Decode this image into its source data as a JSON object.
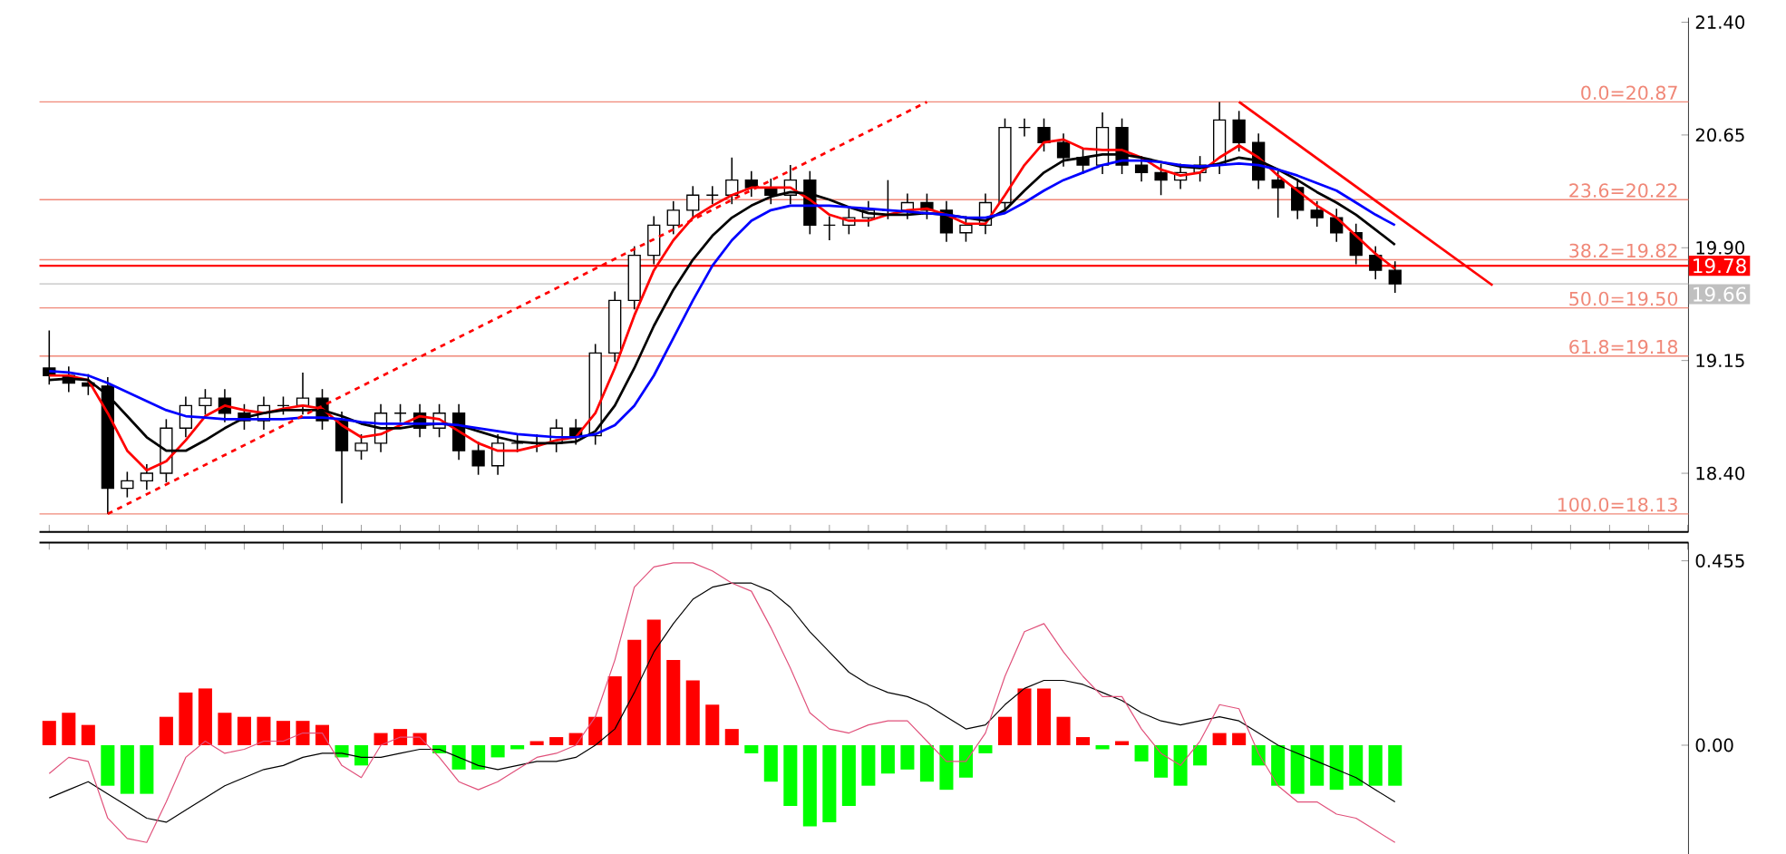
{
  "chart_data": [
    {
      "type": "candlestick",
      "tick_labels": "y",
      "categories": [
        null,
        null,
        null,
        null,
        null,
        null,
        null,
        null,
        null,
        null,
        null,
        null,
        null,
        null,
        null,
        null,
        null,
        null,
        null,
        null,
        null,
        null,
        null,
        null,
        null,
        null,
        null,
        null,
        null,
        null,
        null,
        null,
        null,
        null,
        null,
        null,
        null,
        null,
        null,
        null,
        null,
        null,
        null,
        null,
        null,
        null,
        null,
        null,
        null,
        null,
        null,
        null,
        null,
        null,
        null,
        null,
        null,
        null,
        null,
        null,
        null,
        null,
        null,
        null,
        null,
        null,
        null,
        null,
        null,
        null,
        null,
        null,
        null,
        null,
        null
      ],
      "ohlc": [
        [
          19.1,
          19.35,
          18.99,
          19.05
        ],
        [
          19.05,
          19.11,
          18.94,
          19.0
        ],
        [
          19.0,
          19.06,
          18.92,
          18.98
        ],
        [
          18.98,
          19.04,
          18.13,
          18.3
        ],
        [
          18.3,
          18.41,
          18.24,
          18.35
        ],
        [
          18.35,
          18.46,
          18.29,
          18.4
        ],
        [
          18.4,
          18.76,
          18.34,
          18.7
        ],
        [
          18.7,
          18.91,
          18.64,
          18.85
        ],
        [
          18.85,
          18.96,
          18.79,
          18.9
        ],
        [
          18.9,
          18.96,
          18.74,
          18.8
        ],
        [
          18.8,
          18.86,
          18.69,
          18.75
        ],
        [
          18.75,
          18.91,
          18.69,
          18.85
        ],
        [
          18.85,
          18.91,
          18.79,
          18.85
        ],
        [
          18.85,
          19.07,
          18.79,
          18.9
        ],
        [
          18.9,
          18.96,
          18.69,
          18.75
        ],
        [
          18.75,
          18.81,
          18.2,
          18.55
        ],
        [
          18.55,
          18.66,
          18.49,
          18.6
        ],
        [
          18.6,
          18.86,
          18.54,
          18.8
        ],
        [
          18.8,
          18.86,
          18.74,
          18.8
        ],
        [
          18.8,
          18.86,
          18.64,
          18.7
        ],
        [
          18.7,
          18.86,
          18.64,
          18.8
        ],
        [
          18.8,
          18.86,
          18.49,
          18.55
        ],
        [
          18.55,
          18.61,
          18.39,
          18.45
        ],
        [
          18.45,
          18.66,
          18.39,
          18.6
        ],
        [
          18.6,
          18.66,
          18.54,
          18.6
        ],
        [
          18.6,
          18.66,
          18.54,
          18.6
        ],
        [
          18.6,
          18.76,
          18.54,
          18.7
        ],
        [
          18.7,
          18.76,
          18.59,
          18.65
        ],
        [
          18.65,
          19.26,
          18.59,
          19.2
        ],
        [
          19.2,
          19.61,
          19.14,
          19.55
        ],
        [
          19.55,
          19.91,
          19.49,
          19.85
        ],
        [
          19.85,
          20.11,
          19.79,
          20.05
        ],
        [
          20.05,
          20.21,
          19.99,
          20.15
        ],
        [
          20.15,
          20.31,
          20.09,
          20.25
        ],
        [
          20.25,
          20.31,
          20.19,
          20.25
        ],
        [
          20.25,
          20.5,
          20.19,
          20.35
        ],
        [
          20.35,
          20.41,
          20.24,
          20.3
        ],
        [
          20.3,
          20.36,
          20.19,
          20.25
        ],
        [
          20.25,
          20.45,
          20.19,
          20.35
        ],
        [
          20.35,
          20.41,
          19.99,
          20.05
        ],
        [
          20.05,
          20.11,
          19.95,
          20.05
        ],
        [
          20.05,
          20.16,
          19.99,
          20.1
        ],
        [
          20.1,
          20.21,
          20.04,
          20.15
        ],
        [
          20.15,
          20.35,
          20.09,
          20.15
        ],
        [
          20.15,
          20.26,
          20.09,
          20.2
        ],
        [
          20.2,
          20.26,
          20.09,
          20.15
        ],
        [
          20.15,
          20.21,
          19.94,
          20.0
        ],
        [
          20.0,
          20.11,
          19.94,
          20.05
        ],
        [
          20.05,
          20.26,
          19.99,
          20.2
        ],
        [
          20.2,
          20.76,
          20.14,
          20.7
        ],
        [
          20.7,
          20.76,
          20.64,
          20.7
        ],
        [
          20.7,
          20.76,
          20.54,
          20.6
        ],
        [
          20.6,
          20.66,
          20.44,
          20.5
        ],
        [
          20.5,
          20.56,
          20.39,
          20.45
        ],
        [
          20.45,
          20.8,
          20.39,
          20.7
        ],
        [
          20.7,
          20.76,
          20.39,
          20.45
        ],
        [
          20.45,
          20.51,
          20.34,
          20.4
        ],
        [
          20.4,
          20.46,
          20.25,
          20.35
        ],
        [
          20.35,
          20.46,
          20.29,
          20.4
        ],
        [
          20.4,
          20.51,
          20.34,
          20.45
        ],
        [
          20.45,
          20.87,
          20.39,
          20.75
        ],
        [
          20.75,
          20.81,
          20.54,
          20.6
        ],
        [
          20.6,
          20.66,
          20.29,
          20.35
        ],
        [
          20.35,
          20.41,
          20.1,
          20.3
        ],
        [
          20.3,
          20.36,
          20.09,
          20.15
        ],
        [
          20.15,
          20.21,
          20.04,
          20.1
        ],
        [
          20.1,
          20.16,
          19.94,
          20.0
        ],
        [
          20.0,
          20.06,
          19.79,
          19.85
        ],
        [
          19.85,
          19.91,
          19.69,
          19.75
        ],
        [
          19.75,
          19.81,
          19.6,
          19.66
        ],
        null,
        null,
        null,
        null,
        null
      ],
      "series": [
        {
          "type": "line",
          "color": "#ff0000",
          "values": [
            19.05,
            19.05,
            19.02,
            18.8,
            18.55,
            18.42,
            18.48,
            18.62,
            18.78,
            18.85,
            18.82,
            18.8,
            18.83,
            18.85,
            18.83,
            18.72,
            18.64,
            18.66,
            18.72,
            18.78,
            18.76,
            18.68,
            18.6,
            18.55,
            18.55,
            18.58,
            18.62,
            18.64,
            18.8,
            19.1,
            19.45,
            19.75,
            19.95,
            20.1,
            20.18,
            20.25,
            20.3,
            20.3,
            20.3,
            20.22,
            20.12,
            20.08,
            20.08,
            20.12,
            20.15,
            20.16,
            20.12,
            20.06,
            20.06,
            20.25,
            20.45,
            20.6,
            20.62,
            20.56,
            20.55,
            20.55,
            20.5,
            20.42,
            20.38,
            20.4,
            20.5,
            20.58,
            20.5,
            20.38,
            20.28,
            20.18,
            20.1,
            19.98,
            19.86,
            19.76,
            null,
            null,
            null,
            null,
            null
          ]
        },
        {
          "type": "line",
          "color": "#000000",
          "values": [
            19.02,
            19.03,
            19.02,
            18.92,
            18.78,
            18.64,
            18.55,
            18.55,
            18.62,
            18.7,
            18.77,
            18.8,
            18.82,
            18.82,
            18.82,
            18.78,
            18.73,
            18.7,
            18.7,
            18.72,
            18.73,
            18.72,
            18.68,
            18.64,
            18.61,
            18.6,
            18.6,
            18.61,
            18.68,
            18.85,
            19.1,
            19.38,
            19.62,
            19.82,
            19.98,
            20.1,
            20.18,
            20.24,
            20.27,
            20.26,
            20.22,
            20.17,
            20.13,
            20.12,
            20.12,
            20.13,
            20.12,
            20.1,
            20.08,
            20.15,
            20.28,
            20.4,
            20.48,
            20.5,
            20.52,
            20.52,
            20.5,
            20.47,
            20.44,
            20.43,
            20.46,
            20.5,
            20.48,
            20.42,
            20.35,
            20.27,
            20.2,
            20.12,
            20.02,
            19.92,
            null,
            null,
            null,
            null,
            null
          ]
        },
        {
          "type": "line",
          "color": "#0000ff",
          "values": [
            19.08,
            19.07,
            19.05,
            19.0,
            18.94,
            18.88,
            18.82,
            18.78,
            18.77,
            18.76,
            18.76,
            18.76,
            18.76,
            18.77,
            18.77,
            18.76,
            18.74,
            18.73,
            18.73,
            18.73,
            18.73,
            18.72,
            18.7,
            18.68,
            18.66,
            18.65,
            18.64,
            18.64,
            18.66,
            18.72,
            18.85,
            19.05,
            19.3,
            19.55,
            19.78,
            19.95,
            20.08,
            20.15,
            20.18,
            20.18,
            20.18,
            20.17,
            20.16,
            20.15,
            20.14,
            20.13,
            20.12,
            20.1,
            20.1,
            20.13,
            20.2,
            20.28,
            20.35,
            20.4,
            20.45,
            20.48,
            20.48,
            20.47,
            20.45,
            20.44,
            20.45,
            20.46,
            20.45,
            20.42,
            20.38,
            20.33,
            20.28,
            20.2,
            20.12,
            20.05,
            null,
            null,
            null,
            null,
            null
          ]
        },
        {
          "type": "line",
          "color": "#ff0000",
          "line_style": "dashed",
          "values": [
            null,
            null,
            null,
            18.13,
            null,
            null,
            null,
            null,
            null,
            null,
            null,
            null,
            null,
            null,
            null,
            null,
            null,
            null,
            null,
            null,
            null,
            null,
            null,
            null,
            null,
            null,
            null,
            null,
            null,
            null,
            null,
            null,
            null,
            null,
            null,
            null,
            null,
            null,
            null,
            null,
            null,
            null,
            null,
            null,
            null,
            20.87,
            null,
            null,
            null,
            null,
            null,
            null,
            null,
            null,
            null,
            null,
            null,
            null,
            null,
            null,
            null,
            null,
            null,
            null,
            null,
            null,
            null,
            null,
            null,
            null,
            null,
            null,
            null,
            null,
            null
          ]
        },
        {
          "type": "line",
          "color": "#ff0000",
          "values": [
            null,
            null,
            null,
            null,
            null,
            null,
            null,
            null,
            null,
            null,
            null,
            null,
            null,
            null,
            null,
            null,
            null,
            null,
            null,
            null,
            null,
            null,
            null,
            null,
            null,
            null,
            null,
            null,
            null,
            null,
            null,
            null,
            null,
            null,
            null,
            null,
            null,
            null,
            null,
            null,
            null,
            null,
            null,
            null,
            null,
            null,
            null,
            null,
            null,
            null,
            null,
            null,
            null,
            null,
            null,
            null,
            null,
            null,
            null,
            null,
            null,
            20.87,
            null,
            null,
            null,
            null,
            null,
            null,
            null,
            null,
            null,
            null,
            null,
            null,
            19.65
          ]
        }
      ],
      "ylim": [
        18.01,
        21.43
      ],
      "yticks": [
        {
          "value": 18.4,
          "label": "18.40"
        },
        {
          "value": 19.15,
          "label": "19.15"
        },
        {
          "value": 19.9,
          "label": "19.90"
        },
        {
          "value": 20.65,
          "label": "20.65"
        },
        {
          "value": 21.4,
          "label": "21.40"
        }
      ],
      "ref_lines": [
        {
          "axis": "y",
          "value": 20.87,
          "label": "0.0=20.87",
          "color": "#f08878"
        },
        {
          "axis": "y",
          "value": 20.22,
          "label": "23.6=20.22",
          "color": "#f08878"
        },
        {
          "axis": "y",
          "value": 19.82,
          "label": "38.2=19.82",
          "color": "#f08878"
        },
        {
          "axis": "y",
          "value": 19.5,
          "label": "50.0=19.50",
          "color": "#f08878"
        },
        {
          "axis": "y",
          "value": 19.18,
          "label": "61.8=19.18",
          "color": "#f08878"
        },
        {
          "axis": "y",
          "value": 18.13,
          "label": "100.0=18.13",
          "color": "#f08878"
        },
        {
          "axis": "y",
          "value": 19.78,
          "color": "#ff0000"
        },
        {
          "axis": "y",
          "value": 19.66,
          "color": "#c0c0c0"
        }
      ],
      "annotations": [
        "19.78",
        "19.66"
      ]
    },
    {
      "type": "bar",
      "tick_labels": "y",
      "categories": [
        null,
        null,
        null,
        null,
        null,
        null,
        null,
        null,
        null,
        null,
        null,
        null,
        null,
        null,
        null,
        null,
        null,
        null,
        null,
        null,
        null,
        null,
        null,
        null,
        null,
        null,
        null,
        null,
        null,
        null,
        null,
        null,
        null,
        null,
        null,
        null,
        null,
        null,
        null,
        null,
        null,
        null,
        null,
        null,
        null,
        null,
        null,
        null,
        null,
        null,
        null,
        null,
        null,
        null,
        null,
        null,
        null,
        null,
        null,
        null,
        null,
        null,
        null,
        null,
        null,
        null,
        null,
        null,
        null,
        null
      ],
      "series": [
        {
          "color": "#ff0000",
          "values": [
            0.06,
            0.08,
            0.05,
            null,
            null,
            null,
            0.07,
            0.13,
            0.14,
            0.08,
            0.07,
            0.07,
            0.06,
            0.06,
            0.05,
            null,
            null,
            0.03,
            0.04,
            0.03,
            null,
            null,
            null,
            null,
            null,
            0.01,
            0.02,
            0.03,
            0.07,
            0.17,
            0.26,
            0.31,
            0.21,
            0.16,
            0.1,
            0.04,
            null,
            null,
            null,
            null,
            null,
            null,
            null,
            null,
            null,
            null,
            null,
            null,
            null,
            0.07,
            0.14,
            0.14,
            0.07,
            0.02,
            null,
            0.01,
            null,
            null,
            null,
            null,
            0.03,
            0.03,
            null,
            null,
            null,
            null,
            null,
            null,
            null,
            null
          ]
        },
        {
          "color": "#00ff00",
          "values": [
            null,
            null,
            null,
            -0.1,
            -0.12,
            -0.12,
            null,
            null,
            null,
            null,
            null,
            null,
            null,
            null,
            null,
            -0.03,
            -0.05,
            null,
            null,
            null,
            -0.02,
            -0.06,
            -0.06,
            -0.03,
            -0.01,
            null,
            null,
            null,
            null,
            null,
            null,
            null,
            null,
            null,
            null,
            null,
            -0.02,
            -0.09,
            -0.15,
            -0.2,
            -0.19,
            -0.15,
            -0.1,
            -0.07,
            -0.06,
            -0.09,
            -0.11,
            -0.08,
            -0.02,
            null,
            null,
            null,
            null,
            null,
            -0.01,
            null,
            -0.04,
            -0.08,
            -0.1,
            -0.05,
            null,
            null,
            -0.05,
            -0.1,
            -0.12,
            -0.1,
            -0.11,
            -0.1,
            -0.1,
            -0.1
          ]
        },
        {
          "type": "line",
          "color": "#000000",
          "values": [
            -0.13,
            -0.11,
            -0.09,
            -0.12,
            -0.15,
            -0.18,
            -0.19,
            -0.16,
            -0.13,
            -0.1,
            -0.08,
            -0.06,
            -0.05,
            -0.03,
            -0.02,
            -0.02,
            -0.03,
            -0.03,
            -0.02,
            -0.01,
            -0.01,
            -0.03,
            -0.05,
            -0.06,
            -0.05,
            -0.04,
            -0.04,
            -0.03,
            0.0,
            0.04,
            0.13,
            0.23,
            0.3,
            0.36,
            0.39,
            0.4,
            0.4,
            0.38,
            0.34,
            0.28,
            0.23,
            0.18,
            0.15,
            0.13,
            0.12,
            0.1,
            0.07,
            0.04,
            0.05,
            0.1,
            0.14,
            0.16,
            0.16,
            0.15,
            0.13,
            0.11,
            0.08,
            0.06,
            0.05,
            0.06,
            0.07,
            0.06,
            0.03,
            0.0,
            -0.02,
            -0.04,
            -0.06,
            -0.08,
            -0.11,
            -0.14
          ]
        },
        {
          "type": "line",
          "color": "#e0507a",
          "values": [
            -0.07,
            -0.03,
            -0.04,
            -0.18,
            -0.23,
            -0.24,
            -0.14,
            -0.03,
            0.01,
            -0.02,
            -0.01,
            0.01,
            0.01,
            0.03,
            0.03,
            -0.05,
            -0.08,
            0.0,
            0.02,
            0.02,
            -0.03,
            -0.09,
            -0.11,
            -0.09,
            -0.06,
            -0.03,
            -0.02,
            0.0,
            0.07,
            0.21,
            0.39,
            0.44,
            0.45,
            0.45,
            0.43,
            0.4,
            0.38,
            0.29,
            0.19,
            0.08,
            0.04,
            0.03,
            0.05,
            0.06,
            0.06,
            0.01,
            -0.04,
            -0.04,
            0.03,
            0.17,
            0.28,
            0.3,
            0.23,
            0.17,
            0.12,
            0.12,
            0.04,
            -0.02,
            -0.05,
            0.01,
            0.1,
            0.09,
            -0.02,
            -0.1,
            -0.14,
            -0.14,
            -0.17,
            -0.18,
            -0.21,
            -0.24
          ]
        }
      ],
      "ylim": [
        -0.27,
        0.5
      ],
      "yticks": [
        {
          "value": 0,
          "label": "0.00"
        },
        0.455
      ]
    }
  ]
}
